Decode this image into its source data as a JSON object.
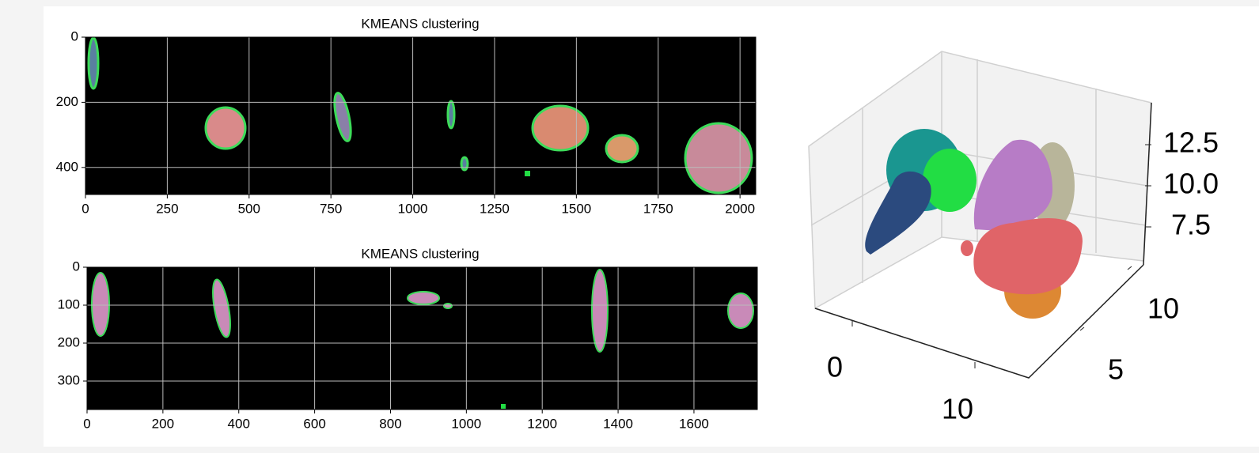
{
  "chart_data": [
    {
      "type": "image",
      "title": "KMEANS clustering",
      "xlim": [
        0,
        2048
      ],
      "ylim": [
        483,
        0
      ],
      "xticks": [
        0,
        250,
        500,
        750,
        1000,
        1250,
        1500,
        1750,
        2000
      ],
      "yticks": [
        0,
        200,
        400
      ],
      "grid": true,
      "background": "#000000"
    },
    {
      "type": "image",
      "title": "KMEANS clustering",
      "xlim": [
        0,
        1767
      ],
      "ylim": [
        375,
        0
      ],
      "xticks": [
        0,
        200,
        400,
        600,
        800,
        1000,
        1200,
        1400,
        1600
      ],
      "yticks": [
        0,
        100,
        200,
        300
      ],
      "grid": true,
      "background": "#000000"
    },
    {
      "type": "scatter3d",
      "xticks": [
        0,
        10
      ],
      "yticks": [
        5,
        10
      ],
      "zticks": [
        7.5,
        {
          "value": 10,
          "label": "10.0"
        },
        12.5
      ],
      "clusters": [
        {
          "color": "#1a9690"
        },
        {
          "color": "#22dd44"
        },
        {
          "color": "#2b4a7e"
        },
        {
          "color": "#b8b59a"
        },
        {
          "color": "#b77cc6"
        },
        {
          "color": "#dd8833"
        },
        {
          "color": "#e06468"
        }
      ]
    }
  ]
}
